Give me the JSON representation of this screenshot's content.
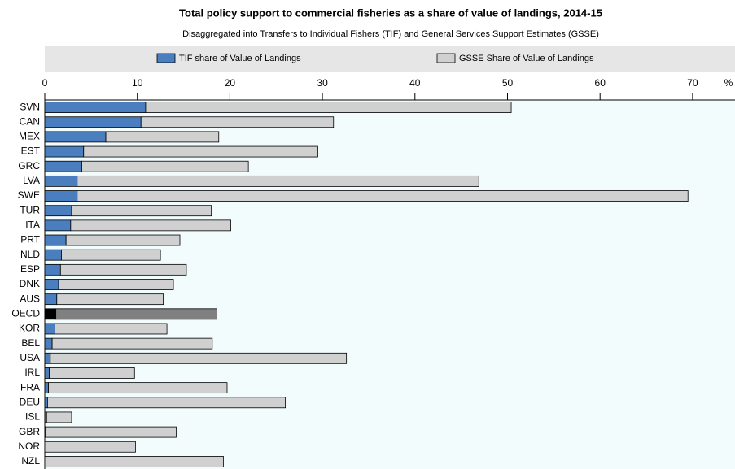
{
  "chart_data": {
    "type": "stacked_barh",
    "title": "Total policy support to commercial fisheries as a share of value of landings, 2014-15",
    "subtitle": "Disaggregated into Transfers to Individual Fishers (TIF) and General Services Support Estimates (GSSE)",
    "x_unit": "%",
    "categories": [
      "SVN",
      "CAN",
      "MEX",
      "EST",
      "GRC",
      "LVA",
      "SWE",
      "TUR",
      "ITA",
      "PRT",
      "NLD",
      "ESP",
      "DNK",
      "AUS",
      "OECD",
      "KOR",
      "BEL",
      "USA",
      "IRL",
      "FRA",
      "DEU",
      "ISL",
      "GBR",
      "NOR",
      "NZL"
    ],
    "series": [
      {
        "name": "TIF share of Value of Landings",
        "color": "#4a7ebf",
        "highlight_color": "#000000",
        "values": [
          10.9,
          10.4,
          6.6,
          4.2,
          4.0,
          3.5,
          3.5,
          2.9,
          2.8,
          2.3,
          1.8,
          1.7,
          1.5,
          1.3,
          1.2,
          1.1,
          0.8,
          0.6,
          0.5,
          0.4,
          0.3,
          0.2,
          0.1,
          0,
          0
        ]
      },
      {
        "name": "GSSE Share of Value of Landings",
        "color": "#d0d0d0",
        "highlight_color": "#808080",
        "values": [
          39.5,
          20.8,
          12.2,
          25.3,
          18.0,
          43.4,
          66.0,
          15.1,
          17.3,
          12.3,
          10.7,
          13.6,
          12.4,
          11.5,
          17.4,
          12.1,
          17.3,
          32.0,
          9.2,
          19.3,
          25.7,
          2.7,
          14.1,
          9.8,
          19.3
        ]
      }
    ],
    "highlight": "OECD",
    "xlim": [
      0,
      75
    ],
    "xticks": [
      0,
      10,
      20,
      30,
      40,
      50,
      60,
      70
    ]
  }
}
